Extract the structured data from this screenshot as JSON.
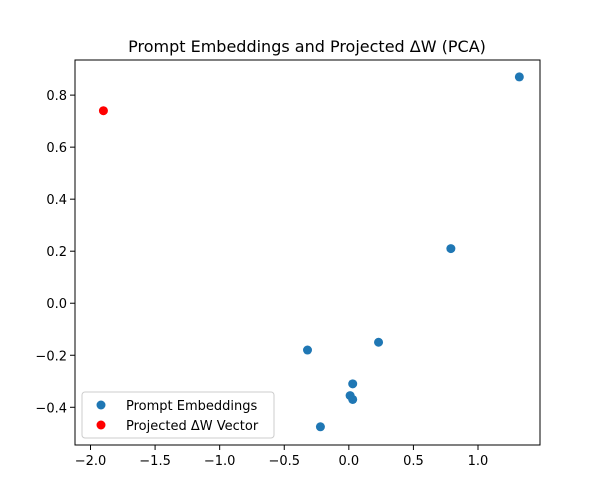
{
  "chart_data": {
    "type": "scatter",
    "title": "Prompt Embeddings and Projected ΔW (PCA)",
    "xlabel": "",
    "ylabel": "",
    "xlim": [
      -2.12,
      1.48
    ],
    "ylim": [
      -0.545,
      0.935
    ],
    "xticks": [
      -2.0,
      -1.5,
      -1.0,
      -0.5,
      0.0,
      0.5,
      1.0
    ],
    "xtick_labels": [
      "−2.0",
      "−1.5",
      "−1.0",
      "−0.5",
      "0.0",
      "0.5",
      "1.0"
    ],
    "yticks": [
      -0.4,
      -0.2,
      0.0,
      0.2,
      0.4,
      0.6,
      0.8
    ],
    "ytick_labels": [
      "−0.4",
      "−0.2",
      "0.0",
      "0.2",
      "0.4",
      "0.6",
      "0.8"
    ],
    "grid": false,
    "legend_position": "lower-left",
    "series": [
      {
        "name": "Prompt Embeddings",
        "color": "#1f77b4",
        "points": [
          {
            "x": 1.32,
            "y": 0.87
          },
          {
            "x": 0.79,
            "y": 0.21
          },
          {
            "x": 0.23,
            "y": -0.15
          },
          {
            "x": -0.32,
            "y": -0.18
          },
          {
            "x": 0.03,
            "y": -0.31
          },
          {
            "x": 0.01,
            "y": -0.355
          },
          {
            "x": 0.03,
            "y": -0.37
          },
          {
            "x": -0.22,
            "y": -0.475
          }
        ]
      },
      {
        "name": "Projected ΔW Vector",
        "color": "#ff0000",
        "points": [
          {
            "x": -1.9,
            "y": 0.74
          }
        ]
      }
    ]
  }
}
